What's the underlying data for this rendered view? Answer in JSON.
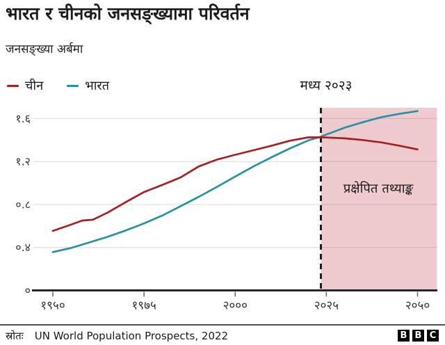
{
  "header": {
    "title": "भारत र चीनको जनसङ्ख्यामा परिवर्तन",
    "subtitle": "जनसङ्ख्या अर्बमा"
  },
  "legend": {
    "items": [
      {
        "label": "चीन",
        "color": "#a81f22"
      },
      {
        "label": "भारत",
        "color": "#2790a9"
      }
    ]
  },
  "annotations": {
    "projection_start_label": "मध्य २०२३",
    "projection_area_label": "प्रक्षेपित तथ्याङ्क"
  },
  "footer": {
    "source_label": "स्रोतः",
    "source_text": "UN World Population Prospects, 2022",
    "logo_letters": [
      "B",
      "B",
      "C"
    ]
  },
  "colors": {
    "china_line": "#a81f22",
    "india_line": "#2790a9",
    "projection_region": "#f0cbcd",
    "axis": "#262626",
    "dashed_line": "#111111"
  },
  "chart_data": {
    "type": "line",
    "title": "भारत र चीनको जनसङ्ख्यामा परिवर्तन",
    "ylabel": "जनसङ्ख्या अर्बमा",
    "x_range": [
      1950,
      2050
    ],
    "y_range": [
      0,
      1.7
    ],
    "grid": true,
    "legend_position": "top-left",
    "projection_start_year": 2023.5,
    "x_ticks": [
      {
        "year": 1950,
        "label": "१९५०"
      },
      {
        "year": 1975,
        "label": "१९७५"
      },
      {
        "year": 2000,
        "label": "२०००"
      },
      {
        "year": 2025,
        "label": "२०२५"
      },
      {
        "year": 2050,
        "label": "२०५०"
      }
    ],
    "y_ticks": [
      {
        "value": 0,
        "label": "०"
      },
      {
        "value": 0.4,
        "label": "०.४"
      },
      {
        "value": 0.8,
        "label": "०.८"
      },
      {
        "value": 1.2,
        "label": "१.२"
      },
      {
        "value": 1.6,
        "label": "१.६"
      }
    ],
    "series": [
      {
        "name": "भारत",
        "color": "#2790a9",
        "points": [
          [
            1950,
            0.357
          ],
          [
            1955,
            0.395
          ],
          [
            1960,
            0.446
          ],
          [
            1965,
            0.499
          ],
          [
            1970,
            0.558
          ],
          [
            1975,
            0.623
          ],
          [
            1980,
            0.697
          ],
          [
            1985,
            0.784
          ],
          [
            1990,
            0.871
          ],
          [
            1995,
            0.964
          ],
          [
            2000,
            1.06
          ],
          [
            2005,
            1.154
          ],
          [
            2010,
            1.24
          ],
          [
            2015,
            1.322
          ],
          [
            2020,
            1.396
          ],
          [
            2023.5,
            1.432
          ],
          [
            2030,
            1.515
          ],
          [
            2035,
            1.566
          ],
          [
            2040,
            1.612
          ],
          [
            2045,
            1.644
          ],
          [
            2050,
            1.67
          ]
        ]
      },
      {
        "name": "चीन",
        "color": "#a81f22",
        "points": [
          [
            1950,
            0.554
          ],
          [
            1955,
            0.613
          ],
          [
            1958,
            0.65
          ],
          [
            1961,
            0.659
          ],
          [
            1965,
            0.724
          ],
          [
            1970,
            0.822
          ],
          [
            1975,
            0.916
          ],
          [
            1980,
            0.982
          ],
          [
            1985,
            1.052
          ],
          [
            1990,
            1.154
          ],
          [
            1995,
            1.218
          ],
          [
            2000,
            1.263
          ],
          [
            2005,
            1.305
          ],
          [
            2010,
            1.348
          ],
          [
            2015,
            1.394
          ],
          [
            2020,
            1.425
          ],
          [
            2023.5,
            1.426
          ],
          [
            2030,
            1.416
          ],
          [
            2035,
            1.4
          ],
          [
            2040,
            1.378
          ],
          [
            2045,
            1.348
          ],
          [
            2050,
            1.313
          ]
        ]
      }
    ]
  }
}
